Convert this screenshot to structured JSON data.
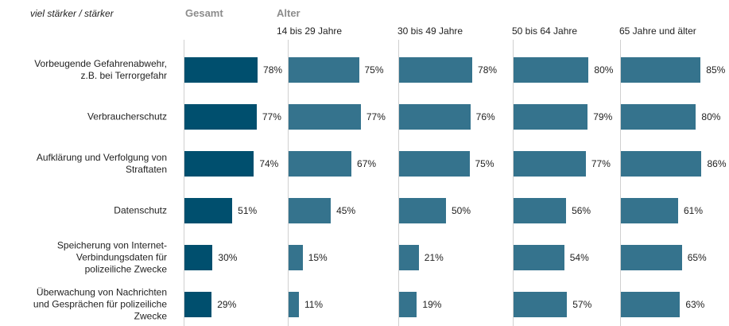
{
  "chart_data": {
    "type": "bar",
    "orientation": "horizontal",
    "title": "viel stärker / stärker",
    "group_label": "Alter",
    "categories": [
      "Vorbeugende Gefahrenabwehr,\nz.B. bei Terrorgefahr",
      "Verbraucherschutz",
      "Aufklärung und Verfolgung von\nStraftaten",
      "Datenschutz",
      "Speicherung von Internet-\nVerbindungsdaten für\npolizeiliche Zwecke",
      "Überwachung von Nachrichten\nund Gesprächen für polizeiliche\nZwecke"
    ],
    "xlim": [
      0,
      100
    ],
    "series": [
      {
        "name": "Gesamt",
        "color": "#004f6e",
        "values": [
          78,
          77,
          74,
          51,
          30,
          29
        ],
        "value_labels": [
          "78%",
          "77%",
          "74%",
          "51%",
          "30%",
          "29%"
        ]
      },
      {
        "name": "14 bis 29 Jahre",
        "color": "#35738d",
        "values": [
          75,
          77,
          67,
          45,
          15,
          11
        ],
        "value_labels": [
          "75%",
          "77%",
          "67%",
          "45%",
          "15%",
          "11%"
        ]
      },
      {
        "name": "30 bis 49 Jahre",
        "color": "#35738d",
        "values": [
          78,
          76,
          75,
          50,
          21,
          19
        ],
        "value_labels": [
          "78%",
          "76%",
          "75%",
          "50%",
          "21%",
          "19%"
        ]
      },
      {
        "name": "50 bis 64 Jahre",
        "color": "#35738d",
        "values": [
          80,
          79,
          77,
          56,
          54,
          57
        ],
        "value_labels": [
          "80%",
          "79%",
          "77%",
          "56%",
          "54%",
          "57%"
        ]
      },
      {
        "name": "65 Jahre und älter",
        "color": "#35738d",
        "values": [
          85,
          80,
          86,
          61,
          65,
          63
        ],
        "value_labels": [
          "85%",
          "80%",
          "86%",
          "61%",
          "65%",
          "63%"
        ]
      }
    ]
  }
}
